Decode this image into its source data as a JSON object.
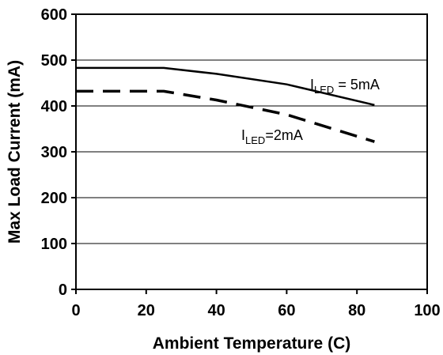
{
  "chart_data": {
    "type": "line",
    "xlabel": "Ambient Temperature (C)",
    "ylabel": "Max Load Current (mA)",
    "xlim": [
      0,
      100
    ],
    "ylim": [
      0,
      600
    ],
    "x_ticks": [
      "0",
      "20",
      "40",
      "60",
      "80",
      "100"
    ],
    "y_ticks": [
      "0",
      "100",
      "200",
      "300",
      "400",
      "500",
      "600"
    ],
    "grid": "horizontal",
    "legend": "none",
    "series": [
      {
        "label_main": "I",
        "label_sub": "LED",
        "label_suffix": " = 5mA",
        "style": "solid",
        "color": "#000000",
        "x": [
          0,
          25,
          40,
          60,
          85
        ],
        "y": [
          483,
          483,
          470,
          447,
          402
        ]
      },
      {
        "label_main": "I",
        "label_sub": "LED",
        "label_suffix": "=2mA",
        "style": "dashed",
        "color": "#000000",
        "x": [
          0,
          25,
          40,
          60,
          85
        ],
        "y": [
          432,
          432,
          413,
          381,
          322
        ]
      }
    ]
  }
}
